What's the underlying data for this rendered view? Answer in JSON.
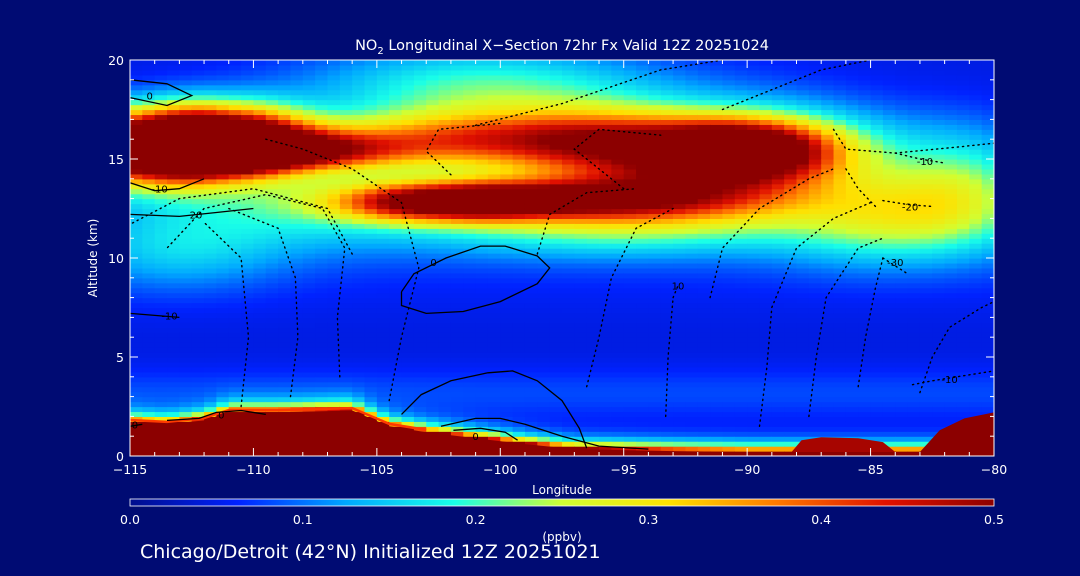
{
  "chart_data": {
    "type": "heatmap",
    "title_prefix": "NO",
    "title_subscript": "2",
    "title_suffix": " Longitudinal X−Section 72hr  Fx Valid 12Z 20251024",
    "xlabel": "Longitude",
    "ylabel": "Altitude (km)",
    "xlim": [
      -115,
      -80
    ],
    "ylim": [
      0,
      20
    ],
    "x_ticks": [
      -115,
      -110,
      -105,
      -100,
      -95,
      -90,
      -85,
      -80
    ],
    "x_tick_labels": [
      "−115",
      "−110",
      "−105",
      "−100",
      "−95",
      "−90",
      "−85",
      "−80"
    ],
    "y_ticks": [
      0,
      5,
      10,
      15,
      20
    ],
    "y_tick_labels": [
      "0",
      "5",
      "10",
      "15",
      "20"
    ],
    "colorbar": {
      "label": "(ppbv)",
      "range": [
        0.0,
        0.5
      ],
      "ticks": [
        0.0,
        0.1,
        0.2,
        0.3,
        0.4,
        0.5
      ],
      "tick_labels": [
        "0.0",
        "0.1",
        "0.2",
        "0.3",
        "0.4",
        "0.5"
      ],
      "colors": [
        "#000d8c",
        "#0022ff",
        "#00a8ff",
        "#19ffe8",
        "#d0ff33",
        "#ffe000",
        "#ff7800",
        "#e01000",
        "#8c0000"
      ]
    },
    "terrain": [
      [
        -115,
        1.7
      ],
      [
        -113.5,
        1.6
      ],
      [
        -112,
        1.8
      ],
      [
        -111,
        2.2
      ],
      [
        -109,
        2.2
      ],
      [
        -106,
        2.3
      ],
      [
        -104.5,
        1.5
      ],
      [
        -103,
        1.2
      ],
      [
        -101,
        0.9
      ],
      [
        -99,
        0.6
      ],
      [
        -97,
        0.35
      ],
      [
        -93,
        0.25
      ],
      [
        -90,
        0.2
      ],
      [
        -88,
        0.2
      ]
    ],
    "sources": [
      [
        -115,
        15.6,
        1.0,
        0.55,
        2.5,
        1.3
      ],
      [
        -111.5,
        16.0,
        1.0,
        0.4,
        2.0,
        1.2
      ],
      [
        -109.5,
        15.4,
        1.2,
        0.3,
        3.0,
        0.7
      ],
      [
        -100.5,
        16.0,
        2.0,
        0.28,
        6.0,
        1.0
      ],
      [
        -99,
        13.0,
        1.0,
        0.3,
        4.5,
        0.7
      ],
      [
        -103,
        12.8,
        1.2,
        0.25,
        2.5,
        0.7
      ],
      [
        -94,
        15.2,
        3.0,
        0.2,
        5.0,
        2.0
      ],
      [
        -90,
        15.5,
        0.0,
        0.33,
        2.5,
        1.0
      ],
      [
        -92,
        13.5,
        0.0,
        0.18,
        4.0,
        1.5
      ],
      [
        -101,
        18.6,
        0.0,
        0.15,
        5.0,
        1.5
      ],
      [
        -97,
        11.5,
        0.0,
        0.1,
        5.0,
        1.0
      ],
      [
        -108,
        12.8,
        0.0,
        0.1,
        4.0,
        1.5
      ],
      [
        -83,
        12.5,
        0.0,
        0.12,
        3.0,
        1.5
      ],
      [
        -81,
        14.0,
        0.0,
        0.1,
        2.0,
        2.0
      ],
      [
        -113,
        10.5,
        0.0,
        0.08,
        3.0,
        1.5
      ],
      [
        -85,
        11.5,
        0.0,
        0.07,
        3.0,
        1.5
      ]
    ],
    "regions": [
      {
        "name": "us-terrain",
        "value": 0.5,
        "points": [
          [
            -80.01,
            0.0
          ],
          [
            -80.01,
            0.0
          ],
          [
            -115,
            0.0
          ]
        ]
      },
      {
        "name": "east-plume-left",
        "value": 0.48,
        "points": [
          [
            -88.2,
            0.2
          ],
          [
            -87.8,
            0.8
          ],
          [
            -87,
            0.95
          ],
          [
            -85.5,
            0.9
          ],
          [
            -84.5,
            0.7
          ],
          [
            -84,
            0.2
          ]
        ]
      },
      {
        "name": "east-plume-right",
        "value": 0.5,
        "points": [
          [
            -83,
            0.2
          ],
          [
            -82.2,
            1.3
          ],
          [
            -81.2,
            1.9
          ],
          [
            -80,
            2.2
          ],
          [
            -80,
            0.2
          ]
        ]
      }
    ],
    "contour_lines": [
      {
        "label": "0",
        "style": "solid",
        "points": [
          [
            -104,
            8.3
          ],
          [
            -103.5,
            9.2
          ],
          [
            -102.2,
            10.0
          ],
          [
            -100.8,
            10.6
          ],
          [
            -99.8,
            10.6
          ],
          [
            -98.5,
            10.1
          ],
          [
            -98.0,
            9.5
          ],
          [
            -98.5,
            8.7
          ],
          [
            -100,
            7.8
          ],
          [
            -101.5,
            7.3
          ],
          [
            -103,
            7.2
          ],
          [
            -104,
            7.6
          ],
          [
            -104,
            8.3
          ]
        ],
        "label_at": [
          -102.7,
          9.8
        ]
      },
      {
        "label": "0",
        "style": "solid",
        "points": [
          [
            -104,
            2.1
          ],
          [
            -103.2,
            3.1
          ],
          [
            -102,
            3.8
          ],
          [
            -100.5,
            4.2
          ],
          [
            -99.5,
            4.3
          ],
          [
            -98.5,
            3.8
          ],
          [
            -97.5,
            2.8
          ],
          [
            -96.8,
            1.4
          ],
          [
            -96.5,
            0.4
          ]
        ],
        "label_at": [
          0,
          0
        ]
      },
      {
        "label": "0",
        "style": "solid",
        "points": [
          [
            -102.4,
            1.5
          ],
          [
            -101,
            1.9
          ],
          [
            -100,
            1.9
          ],
          [
            -99,
            1.6
          ],
          [
            -97.5,
            1.0
          ],
          [
            -96,
            0.5
          ],
          [
            -94,
            0.35
          ]
        ],
        "label_at": [
          -101,
          1.0
        ]
      },
      {
        "label": "0",
        "style": "solid",
        "points": [
          [
            -101.9,
            1.3
          ],
          [
            -100.8,
            1.4
          ],
          [
            -99.8,
            1.2
          ],
          [
            -99.3,
            0.8
          ]
        ],
        "label_at": [
          0,
          0
        ]
      },
      {
        "label": "0",
        "style": "solid",
        "points": [
          [
            -115,
            19.0
          ],
          [
            -113.5,
            18.8
          ],
          [
            -112.5,
            18.2
          ],
          [
            -113.5,
            17.7
          ],
          [
            -115,
            18.1
          ]
        ],
        "label_at": [
          -114.2,
          18.2
        ]
      },
      {
        "label": "0",
        "style": "solid",
        "points": [
          [
            -113.5,
            1.8
          ],
          [
            -112.2,
            1.9
          ],
          [
            -111.5,
            2.2
          ],
          [
            -110.5,
            2.3
          ],
          [
            -109.5,
            2.1
          ]
        ],
        "label_at": [
          -111.3,
          2.1
        ]
      },
      {
        "label": "0",
        "style": "solid",
        "points": [
          [
            -115,
            1.5
          ],
          [
            -114.5,
            1.6
          ]
        ],
        "label_at": [
          -114.8,
          1.6
        ]
      },
      {
        "label": "-10",
        "style": "solid",
        "points": [
          [
            -115,
            13.8
          ],
          [
            -114,
            13.4
          ],
          [
            -113,
            13.5
          ],
          [
            -112,
            14.0
          ]
        ],
        "label_at": [
          -113.8,
          13.5
        ]
      },
      {
        "label": "-20",
        "style": "solid",
        "points": [
          [
            -115,
            12.2
          ],
          [
            -113,
            12.1
          ],
          [
            -111.5,
            12.3
          ],
          [
            -110,
            12.5
          ]
        ],
        "label_at": [
          -112.4,
          12.2
        ]
      },
      {
        "label": "-10",
        "style": "solid",
        "points": [
          [
            -115,
            7.2
          ],
          [
            -114,
            7.1
          ],
          [
            -113,
            7.0
          ]
        ],
        "label_at": [
          -113.4,
          7.1
        ]
      },
      {
        "label": "-10",
        "style": "dotted",
        "points": [
          [
            -84,
            15.3
          ],
          [
            -83,
            15.0
          ],
          [
            -82,
            14.8
          ]
        ],
        "label_at": [
          -82.8,
          14.9
        ]
      },
      {
        "label": "-20",
        "style": "dotted",
        "points": [
          [
            -84.5,
            12.9
          ],
          [
            -83.5,
            12.7
          ],
          [
            -82.5,
            12.6
          ]
        ],
        "label_at": [
          -83.4,
          12.6
        ]
      },
      {
        "label": "-30",
        "style": "dotted",
        "points": [
          [
            -84.5,
            10.0
          ],
          [
            -84.0,
            9.6
          ],
          [
            -83.5,
            9.2
          ]
        ],
        "label_at": [
          -84.0,
          9.8
        ]
      },
      {
        "label": "-10",
        "style": "dotted",
        "points": [
          [
            -83.3,
            3.6
          ],
          [
            -82.5,
            3.8
          ],
          [
            -81.5,
            4.0
          ],
          [
            -80,
            4.3
          ]
        ],
        "label_at": [
          -81.8,
          3.9
        ]
      },
      {
        "label": "10",
        "style": "dotted",
        "points": [
          [
            -93.0,
            8.0
          ],
          [
            -92.8,
            8.6
          ]
        ],
        "label_at": [
          -92.8,
          8.6
        ]
      },
      {
        "label": "",
        "style": "dotted",
        "points": [
          [
            -106,
            10.2
          ],
          [
            -107,
            12.5
          ],
          [
            -110,
            13.5
          ],
          [
            -113,
            13.0
          ],
          [
            -115,
            11.7
          ]
        ],
        "label_at": [
          0,
          0
        ]
      },
      {
        "label": "",
        "style": "dotted",
        "points": [
          [
            -104.5,
            2.8
          ],
          [
            -104,
            6.0
          ],
          [
            -103.3,
            9.5
          ],
          [
            -104,
            12.8
          ],
          [
            -106,
            14.5
          ],
          [
            -108,
            15.5
          ],
          [
            -109.5,
            16.0
          ]
        ],
        "label_at": [
          0,
          0
        ]
      },
      {
        "label": "",
        "style": "dotted",
        "points": [
          [
            -106.5,
            4.0
          ],
          [
            -106.6,
            7.0
          ],
          [
            -106.3,
            10.5
          ],
          [
            -107.2,
            12.5
          ],
          [
            -109.5,
            13.2
          ],
          [
            -112,
            12.5
          ],
          [
            -113.5,
            10.5
          ]
        ],
        "label_at": [
          0,
          0
        ]
      },
      {
        "label": "",
        "style": "dotted",
        "points": [
          [
            -108.5,
            3.0
          ],
          [
            -108.2,
            6.0
          ],
          [
            -108.3,
            9.0
          ],
          [
            -109,
            11.5
          ],
          [
            -111,
            12.5
          ]
        ],
        "label_at": [
          0,
          0
        ]
      },
      {
        "label": "",
        "style": "dotted",
        "points": [
          [
            -110.5,
            2.5
          ],
          [
            -110.2,
            6.0
          ],
          [
            -110.5,
            10.0
          ],
          [
            -112,
            11.8
          ]
        ],
        "label_at": [
          0,
          0
        ]
      },
      {
        "label": "",
        "style": "dotted",
        "points": [
          [
            -101,
            16.7
          ],
          [
            -97.5,
            17.8
          ],
          [
            -93.5,
            19.5
          ],
          [
            -91,
            20
          ]
        ],
        "label_at": [
          0,
          0
        ]
      },
      {
        "label": "",
        "style": "dotted",
        "points": [
          [
            -102,
            14.2
          ],
          [
            -103,
            15.4
          ],
          [
            -102.5,
            16.5
          ],
          [
            -100,
            16.8
          ]
        ],
        "label_at": [
          0,
          0
        ]
      },
      {
        "label": "",
        "style": "dotted",
        "points": [
          [
            -95,
            13.5
          ],
          [
            -97,
            15.5
          ],
          [
            -96,
            16.5
          ],
          [
            -93.5,
            16.2
          ]
        ],
        "label_at": [
          0,
          0
        ]
      },
      {
        "label": "",
        "style": "dotted",
        "points": [
          [
            -91,
            17.5
          ],
          [
            -89,
            18.5
          ],
          [
            -87,
            19.5
          ],
          [
            -85,
            20
          ]
        ],
        "label_at": [
          0,
          0
        ]
      },
      {
        "label": "",
        "style": "dotted",
        "points": [
          [
            -86.5,
            16.5
          ],
          [
            -86,
            15.5
          ],
          [
            -84,
            15.3
          ],
          [
            -81.5,
            15.6
          ],
          [
            -80,
            15.8
          ]
        ],
        "label_at": [
          0,
          0
        ]
      },
      {
        "label": "",
        "style": "dotted",
        "points": [
          [
            -86,
            14.5
          ],
          [
            -85.5,
            13.5
          ],
          [
            -84.8,
            12.6
          ]
        ],
        "label_at": [
          0,
          0
        ]
      },
      {
        "label": "",
        "style": "dotted",
        "points": [
          [
            -91.5,
            8.0
          ],
          [
            -91,
            10.5
          ],
          [
            -89.5,
            12.5
          ],
          [
            -87.5,
            14.0
          ],
          [
            -86.5,
            14.5
          ]
        ],
        "label_at": [
          0,
          0
        ]
      },
      {
        "label": "",
        "style": "dotted",
        "points": [
          [
            -93.3,
            2.0
          ],
          [
            -93.2,
            5.0
          ],
          [
            -93.0,
            8.0
          ]
        ],
        "label_at": [
          0,
          0
        ]
      },
      {
        "label": "",
        "style": "dotted",
        "points": [
          [
            -89.5,
            1.5
          ],
          [
            -89.2,
            4.5
          ],
          [
            -89,
            7.5
          ],
          [
            -88,
            10.5
          ],
          [
            -86.5,
            12.0
          ],
          [
            -85,
            12.8
          ]
        ],
        "label_at": [
          0,
          0
        ]
      },
      {
        "label": "",
        "style": "dotted",
        "points": [
          [
            -87.5,
            2.0
          ],
          [
            -87.2,
            5.0
          ],
          [
            -86.8,
            8.0
          ],
          [
            -85.5,
            10.5
          ],
          [
            -84.5,
            11.0
          ]
        ],
        "label_at": [
          0,
          0
        ]
      },
      {
        "label": "",
        "style": "dotted",
        "points": [
          [
            -85.5,
            3.5
          ],
          [
            -85.2,
            6.0
          ],
          [
            -84.8,
            8.5
          ],
          [
            -84.5,
            10.0
          ]
        ],
        "label_at": [
          0,
          0
        ]
      },
      {
        "label": "",
        "style": "dotted",
        "points": [
          [
            -96.5,
            3.5
          ],
          [
            -96.0,
            6.0
          ],
          [
            -95.5,
            9.0
          ],
          [
            -94.5,
            11.5
          ],
          [
            -93.0,
            12.5
          ]
        ],
        "label_at": [
          0,
          0
        ]
      },
      {
        "label": "",
        "style": "dotted",
        "points": [
          [
            -98.5,
            10.2
          ],
          [
            -98.0,
            12.2
          ],
          [
            -96.5,
            13.3
          ],
          [
            -94.5,
            13.5
          ]
        ],
        "label_at": [
          0,
          0
        ]
      },
      {
        "label": "",
        "style": "dotted",
        "points": [
          [
            -83,
            3.2
          ],
          [
            -82.5,
            5.0
          ],
          [
            -81.8,
            6.5
          ],
          [
            -80.5,
            7.5
          ],
          [
            -80,
            7.8
          ]
        ],
        "label_at": [
          0,
          0
        ]
      }
    ]
  },
  "footer": {
    "text": "Chicago/Detroit (42°N) Initialized 12Z 20251021"
  }
}
